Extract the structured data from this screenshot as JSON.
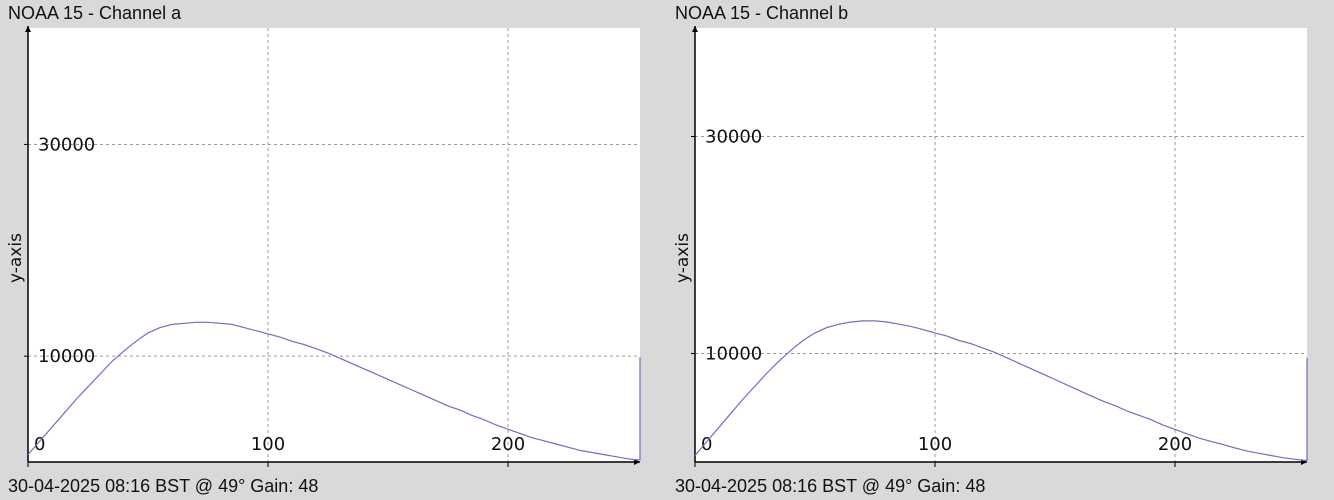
{
  "chart_data": [
    {
      "type": "line",
      "title": "NOAA 15 - Channel a",
      "footer": "30-04-2025 08:16 BST @ 49° Gain: 48",
      "ylabel": "y-axis",
      "xlabel": "",
      "xlim": [
        0,
        255
      ],
      "ylim": [
        0,
        41000
      ],
      "xticks": [
        0,
        100,
        200
      ],
      "yticks": [
        10000,
        30000
      ],
      "grid": true,
      "series": [
        {
          "color": "#6f6fc0",
          "x": [
            0,
            5,
            10,
            15,
            20,
            25,
            30,
            35,
            40,
            45,
            50,
            55,
            60,
            65,
            70,
            75,
            80,
            85,
            90,
            95,
            100,
            105,
            110,
            115,
            120,
            125,
            130,
            135,
            140,
            145,
            150,
            155,
            160,
            165,
            170,
            175,
            180,
            185,
            190,
            195,
            200,
            205,
            210,
            215,
            220,
            225,
            230,
            235,
            240,
            245,
            250,
            254,
            255,
            255
          ],
          "y": [
            700,
            2000,
            3300,
            4600,
            5900,
            7100,
            8300,
            9500,
            10500,
            11400,
            12200,
            12700,
            13000,
            13100,
            13200,
            13200,
            13100,
            13000,
            12700,
            12400,
            12100,
            11800,
            11400,
            11100,
            10700,
            10300,
            9800,
            9300,
            8800,
            8300,
            7800,
            7300,
            6800,
            6300,
            5800,
            5300,
            4900,
            4400,
            4000,
            3500,
            3100,
            2700,
            2300,
            2000,
            1700,
            1400,
            1100,
            900,
            700,
            500,
            300,
            200,
            200,
            9900
          ]
        }
      ]
    },
    {
      "type": "line",
      "title": "NOAA 15 - Channel b",
      "footer": "30-04-2025 08:16 BST @ 49° Gain: 48",
      "ylabel": "y-axis",
      "xlabel": "",
      "xlim": [
        0,
        255
      ],
      "ylim": [
        0,
        40000
      ],
      "xticks": [
        0,
        100,
        200
      ],
      "yticks": [
        10000,
        30000
      ],
      "grid": true,
      "series": [
        {
          "color": "#6f6fc0",
          "x": [
            0,
            5,
            10,
            15,
            20,
            25,
            30,
            35,
            40,
            45,
            50,
            55,
            60,
            65,
            70,
            75,
            80,
            85,
            90,
            95,
            100,
            105,
            110,
            115,
            120,
            125,
            130,
            135,
            140,
            145,
            150,
            155,
            160,
            165,
            170,
            175,
            180,
            185,
            190,
            195,
            200,
            205,
            210,
            215,
            220,
            225,
            230,
            235,
            240,
            245,
            250,
            254,
            255,
            255
          ],
          "y": [
            600,
            1900,
            3200,
            4500,
            5800,
            7000,
            8200,
            9300,
            10300,
            11200,
            11900,
            12400,
            12700,
            12900,
            13000,
            13000,
            12900,
            12700,
            12500,
            12200,
            11900,
            11600,
            11200,
            10900,
            10500,
            10100,
            9600,
            9100,
            8600,
            8100,
            7600,
            7100,
            6600,
            6100,
            5600,
            5200,
            4700,
            4300,
            3900,
            3400,
            3000,
            2600,
            2200,
            1900,
            1600,
            1300,
            1000,
            800,
            600,
            400,
            250,
            150,
            150,
            9600
          ]
        }
      ]
    }
  ]
}
